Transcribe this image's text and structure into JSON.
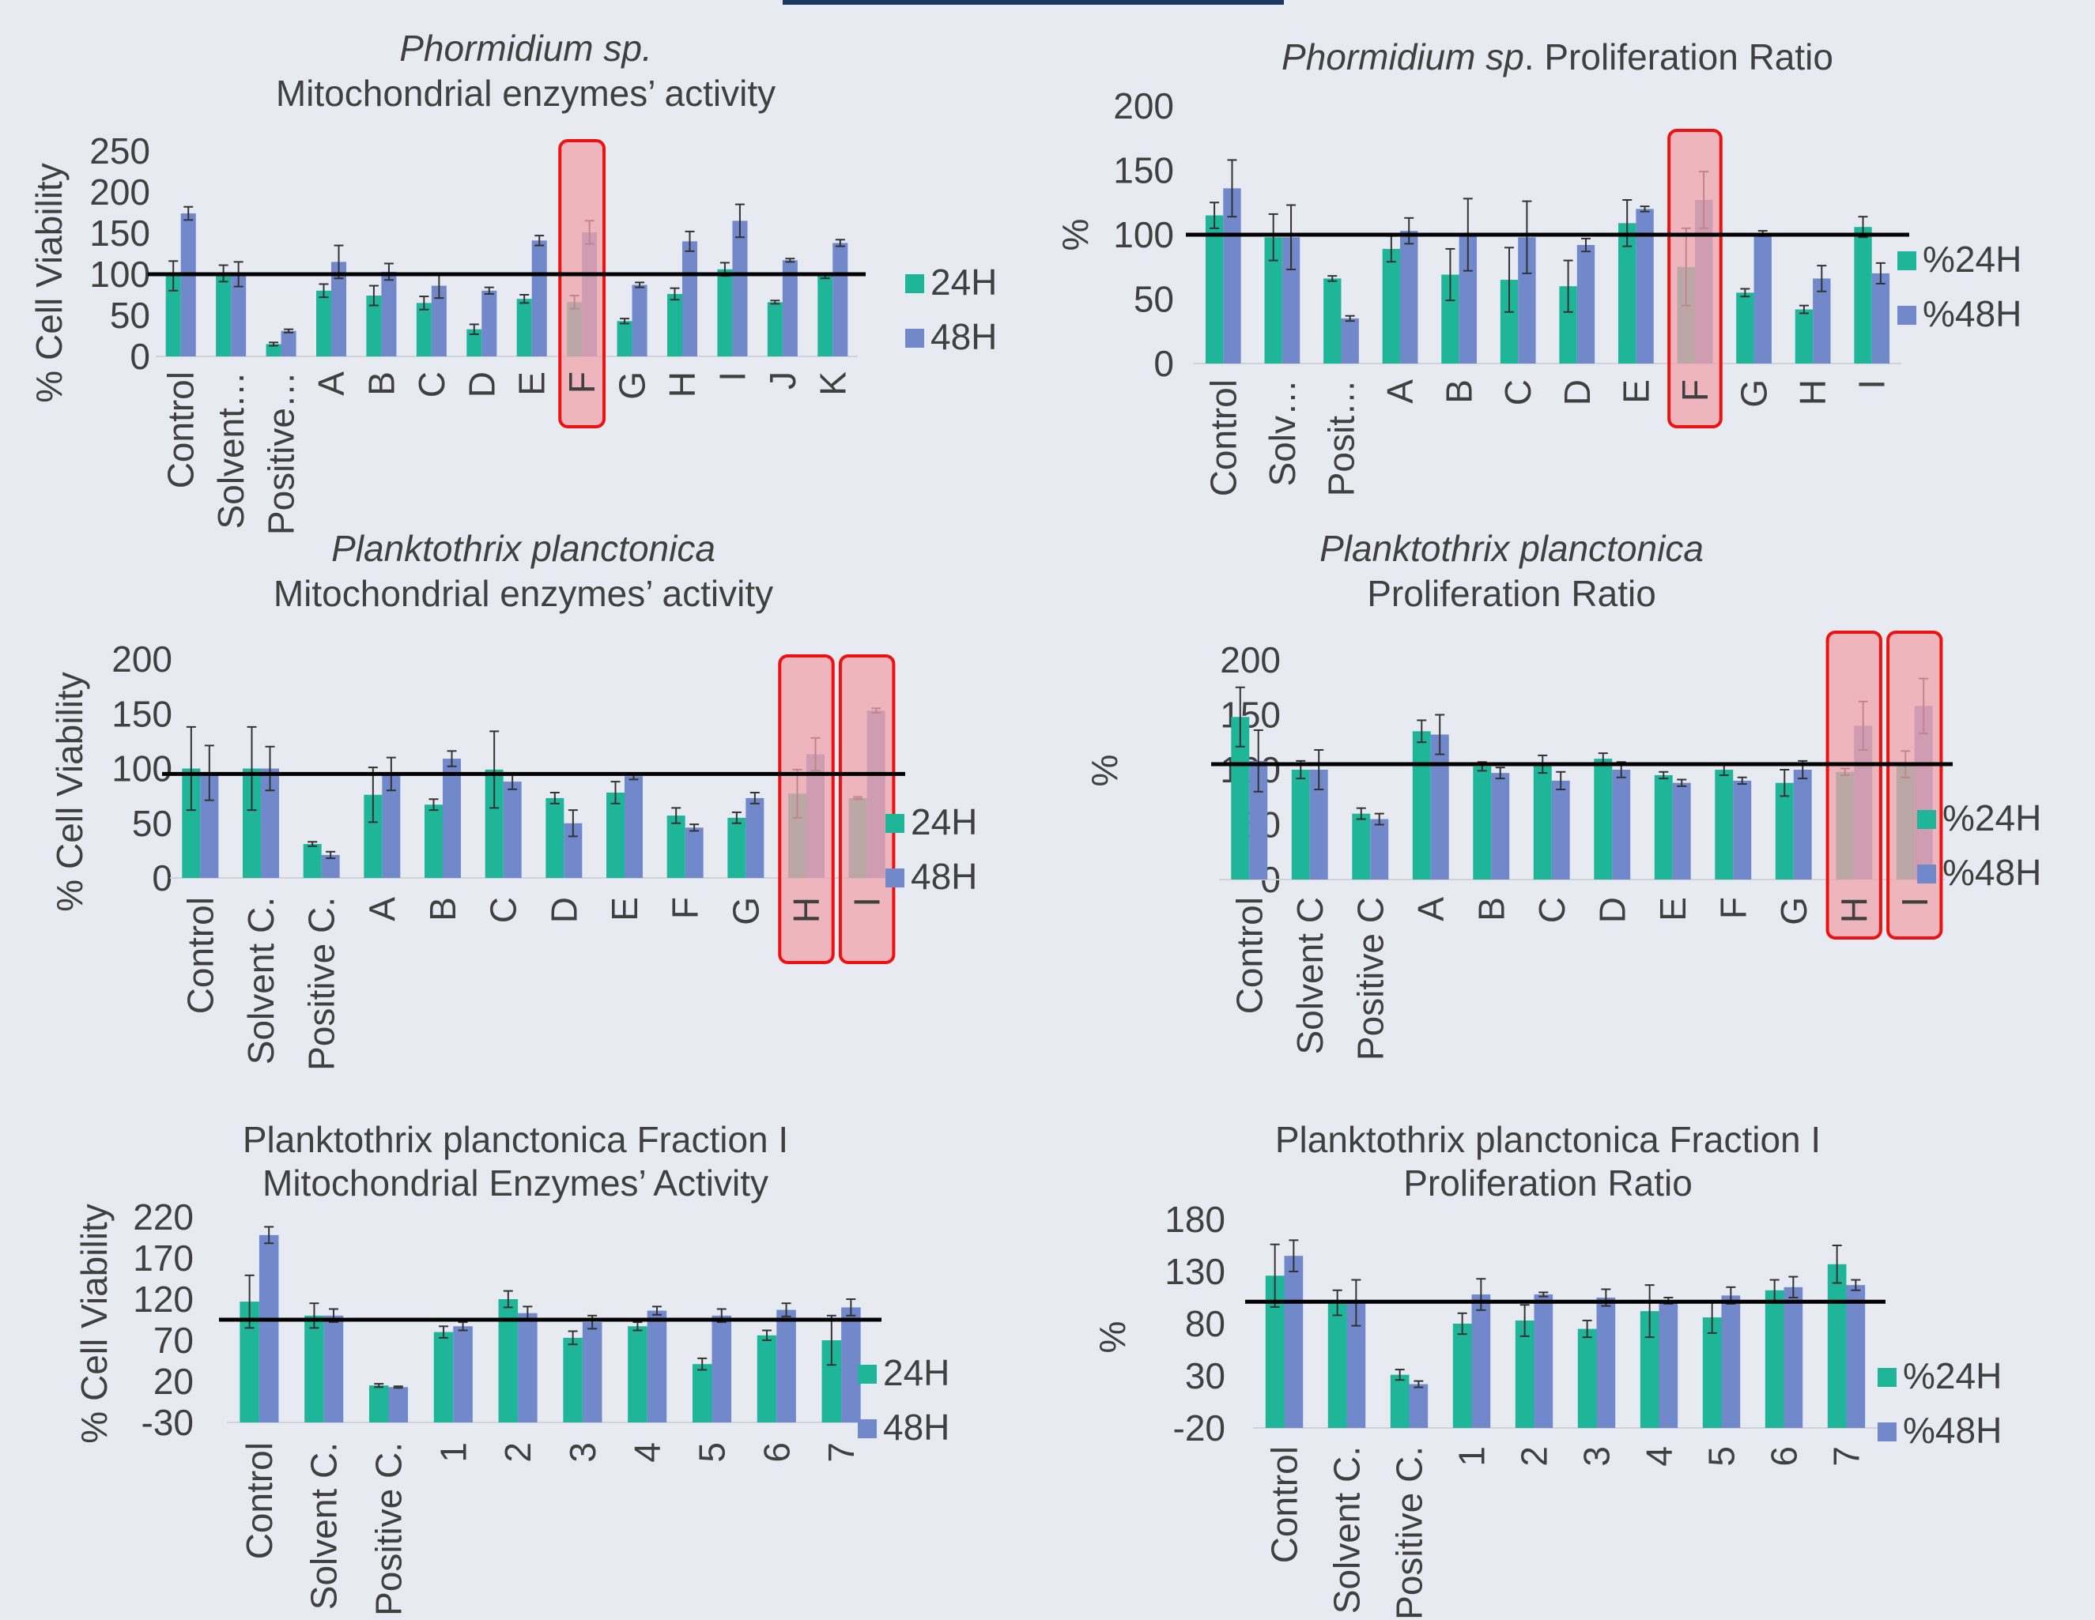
{
  "colors": {
    "s24": "#1fb598",
    "s48": "#7188cb",
    "highlight_fill": "#f0a3aa",
    "highlight_stroke": "#ee1111",
    "background": "#e7ebf1"
  },
  "chart_data": [
    {
      "type": "bar",
      "title_lines": [
        {
          "parts": [
            {
              "text": "Phormidium sp.",
              "italic": true
            }
          ]
        },
        {
          "parts": [
            {
              "text": "Mitochondrial enzymes’ activity",
              "italic": false
            }
          ]
        }
      ],
      "ylabel": "% Cell Viability",
      "yticks": [
        "250",
        "200",
        "150",
        "100",
        "50",
        "0"
      ],
      "ylim": [
        0,
        250
      ],
      "categories": [
        "Control",
        "Solvent…",
        "Positive…",
        "A",
        "B",
        "C",
        "D",
        "E",
        "F",
        "G",
        "H",
        "I",
        "J",
        "K"
      ],
      "series": [
        {
          "name": "24H",
          "values": [
            98,
            101,
            15,
            80,
            74,
            65,
            33,
            70,
            66,
            43,
            76,
            106,
            66,
            98
          ],
          "errors": [
            18,
            10,
            2,
            8,
            12,
            8,
            6,
            5,
            8,
            3,
            7,
            8,
            2,
            3
          ]
        },
        {
          "name": "48H",
          "values": [
            174,
            100,
            31,
            115,
            103,
            86,
            80,
            141,
            151,
            87,
            140,
            165,
            117,
            138
          ],
          "errors": [
            8,
            15,
            2,
            20,
            10,
            15,
            4,
            6,
            14,
            3,
            12,
            20,
            2,
            4
          ]
        }
      ],
      "reference_line": 100,
      "highlighted": [
        "F"
      ]
    },
    {
      "type": "bar",
      "title_lines": [
        {
          "parts": [
            {
              "text": "Phormidium sp",
              "italic": true
            },
            {
              "text": ". Proliferation Ratio",
              "italic": false
            }
          ]
        }
      ],
      "ylabel": "%",
      "yticks": [
        "200",
        "150",
        "100",
        "50",
        "0"
      ],
      "ylim": [
        0,
        200
      ],
      "categories": [
        "Control",
        "Solv…",
        "Posit…",
        "A",
        "B",
        "C",
        "D",
        "E",
        "F",
        "G",
        "H",
        "I"
      ],
      "series": [
        {
          "name": "%24H",
          "values": [
            115,
            98,
            66,
            89,
            69,
            65,
            60,
            109,
            75,
            55,
            42,
            106
          ],
          "errors": [
            10,
            18,
            2,
            10,
            20,
            25,
            20,
            18,
            30,
            3,
            3,
            8
          ]
        },
        {
          "name": "%48H",
          "values": [
            136,
            98,
            35,
            103,
            100,
            98,
            92,
            120,
            127,
            101,
            66,
            70
          ],
          "errors": [
            22,
            25,
            2,
            10,
            28,
            28,
            5,
            2,
            22,
            2,
            10,
            8
          ]
        }
      ],
      "reference_line": 100,
      "highlighted": [
        "F"
      ]
    },
    {
      "type": "bar",
      "title_lines": [
        {
          "parts": [
            {
              "text": "Planktothrix planctonica",
              "italic": true
            }
          ]
        },
        {
          "parts": [
            {
              "text": "Mitochondrial enzymes’ activity",
              "italic": false
            }
          ]
        }
      ],
      "ylabel": "% Cell Viability",
      "yticks": [
        "200",
        "150",
        "100",
        "50",
        "0"
      ],
      "ylim": [
        0,
        200
      ],
      "categories": [
        "Control",
        "Solvent C.",
        "Positive C.",
        "A",
        "B",
        "C",
        "D",
        "E",
        "F",
        "G",
        "H",
        "I"
      ],
      "series": [
        {
          "name": "24H",
          "values": [
            100,
            100,
            31,
            76,
            67,
            99,
            73,
            78,
            57,
            55,
            77,
            73
          ],
          "errors": [
            38,
            38,
            2,
            25,
            5,
            35,
            5,
            10,
            7,
            5,
            22,
            1
          ]
        },
        {
          "name": "48H",
          "values": [
            96,
            100,
            21,
            95,
            109,
            88,
            50,
            93,
            46,
            73,
            113,
            153
          ],
          "errors": [
            25,
            20,
            3,
            15,
            7,
            7,
            12,
            3,
            3,
            5,
            15,
            2
          ]
        }
      ],
      "reference_line": 95,
      "highlighted": [
        "H",
        "I"
      ]
    },
    {
      "type": "bar",
      "title_lines": [
        {
          "parts": [
            {
              "text": "Planktothrix planctonica",
              "italic": true
            }
          ]
        },
        {
          "parts": [
            {
              "text": "Proliferation Ratio",
              "italic": false
            }
          ]
        }
      ],
      "ylabel": "%",
      "yticks": [
        "200",
        "150",
        "100",
        "50",
        "0"
      ],
      "ylim": [
        0,
        200
      ],
      "categories": [
        "Control",
        "Solvent C",
        "Positive C",
        "A",
        "B",
        "C",
        "D",
        "E",
        "F",
        "G",
        "H",
        "I"
      ],
      "series": [
        {
          "name": "%24H",
          "values": [
            148,
            100,
            60,
            135,
            103,
            105,
            110,
            95,
            100,
            88,
            98,
            105
          ],
          "errors": [
            27,
            8,
            5,
            10,
            4,
            8,
            5,
            3,
            5,
            12,
            3,
            12
          ]
        },
        {
          "name": "%48H",
          "values": [
            108,
            100,
            55,
            132,
            97,
            90,
            100,
            88,
            90,
            100,
            140,
            158
          ],
          "errors": [
            28,
            18,
            5,
            18,
            5,
            8,
            7,
            3,
            3,
            8,
            22,
            25
          ]
        }
      ],
      "reference_line": 105,
      "highlighted": [
        "H",
        "I"
      ]
    },
    {
      "type": "bar",
      "title_lines": [
        {
          "parts": [
            {
              "text": "Planktothrix planctonica  Fraction I",
              "italic": false
            }
          ]
        },
        {
          "parts": [
            {
              "text": "Mitochondrial Enzymes’ Activity",
              "italic": false
            }
          ]
        }
      ],
      "ylabel": "% Cell Viability",
      "yticks": [
        "220",
        "170",
        "120",
        "70",
        "20",
        "-30"
      ],
      "ylim": [
        -30,
        220
      ],
      "categories": [
        "Control",
        "Solvent C.",
        "Positive C.",
        "1",
        "2",
        "3",
        "4",
        "5",
        "6",
        "7"
      ],
      "series": [
        {
          "name": "24H",
          "values": [
            117,
            100,
            15,
            80,
            120,
            73,
            87,
            41,
            76,
            70
          ],
          "errors": [
            32,
            15,
            2,
            7,
            10,
            8,
            5,
            7,
            6,
            30
          ]
        },
        {
          "name": "48H",
          "values": [
            198,
            100,
            13,
            87,
            103,
            92,
            106,
            100,
            107,
            110
          ],
          "errors": [
            10,
            8,
            1,
            5,
            8,
            8,
            5,
            8,
            8,
            10
          ]
        }
      ],
      "reference_line": 95,
      "highlighted": []
    },
    {
      "type": "bar",
      "title_lines": [
        {
          "parts": [
            {
              "text": "Planktothrix planctonica Fraction I",
              "italic": false
            }
          ]
        },
        {
          "parts": [
            {
              "text": "Proliferation Ratio",
              "italic": false
            }
          ]
        }
      ],
      "ylabel": "%",
      "yticks": [
        "180",
        "130",
        "80",
        "30",
        "-20"
      ],
      "ylim": [
        -20,
        180
      ],
      "categories": [
        "Control",
        "Solvent C.",
        "Positive C.",
        "1",
        "2",
        "3",
        "4",
        "5",
        "6",
        "7"
      ],
      "series": [
        {
          "name": "%24H",
          "values": [
            126,
            100,
            31,
            80,
            83,
            75,
            92,
            86,
            112,
            137
          ],
          "errors": [
            30,
            12,
            5,
            10,
            15,
            8,
            25,
            15,
            10,
            18
          ]
        },
        {
          "name": "%48H",
          "values": [
            145,
            100,
            22,
            108,
            108,
            105,
            102,
            107,
            115,
            117
          ],
          "errors": [
            15,
            22,
            3,
            15,
            2,
            8,
            3,
            8,
            10,
            5
          ]
        }
      ],
      "reference_line": 101,
      "highlighted": []
    }
  ]
}
